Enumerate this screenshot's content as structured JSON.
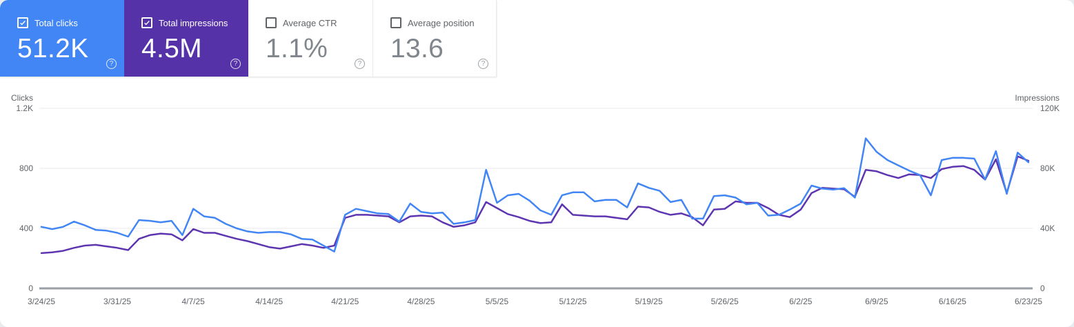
{
  "page": {
    "background": "#e9ecef",
    "panel_background": "#ffffff"
  },
  "icons": {
    "help": "?"
  },
  "cards": [
    {
      "label": "Total clicks",
      "value": "51.2K",
      "checked": true,
      "background": "#4285f4",
      "accent": "#4285f4"
    },
    {
      "label": "Total impressions",
      "value": "4.5M",
      "checked": true,
      "background": "#5632a8",
      "accent": "#5e35b1"
    },
    {
      "label": "Average CTR",
      "value": "1.1%",
      "checked": false,
      "background": "#ffffff",
      "accent": "#80868b"
    },
    {
      "label": "Average position",
      "value": "13.6",
      "checked": false,
      "background": "#ffffff",
      "accent": "#80868b"
    }
  ],
  "chart_data": {
    "type": "line",
    "title": "",
    "grid": true,
    "legend_position": "none",
    "date_range": {
      "start": "3/24/25",
      "end": "6/23/25",
      "interval": "daily"
    },
    "x_tick_labels": [
      "3/24/25",
      "3/31/25",
      "4/7/25",
      "4/14/25",
      "4/21/25",
      "4/28/25",
      "5/5/25",
      "5/12/25",
      "5/19/25",
      "5/26/25",
      "6/2/25",
      "6/9/25",
      "6/16/25",
      "6/23/25"
    ],
    "left_axis": {
      "title": "Clicks",
      "tick_labels": [
        "1.2K",
        "800",
        "400",
        "0"
      ],
      "min": 0,
      "max": 1200
    },
    "right_axis": {
      "title": "Impressions",
      "tick_labels": [
        "120K",
        "80K",
        "40K",
        "0"
      ],
      "min": 0,
      "max": 120000
    },
    "colors": {
      "gridline": "#e8eaed",
      "axis_line": "#9aa0a6",
      "tick_text": "#5f6368"
    },
    "series": [
      {
        "name": "Total clicks",
        "axis": "left",
        "color": "#4285f4",
        "values": [
          410,
          395,
          410,
          445,
          420,
          390,
          385,
          370,
          345,
          455,
          450,
          440,
          450,
          355,
          530,
          480,
          470,
          430,
          400,
          380,
          370,
          375,
          375,
          360,
          330,
          325,
          285,
          245,
          490,
          530,
          515,
          500,
          495,
          445,
          565,
          510,
          500,
          505,
          430,
          440,
          455,
          790,
          570,
          620,
          630,
          585,
          520,
          490,
          620,
          640,
          640,
          580,
          590,
          590,
          540,
          700,
          670,
          650,
          575,
          590,
          465,
          465,
          615,
          620,
          605,
          560,
          570,
          485,
          490,
          525,
          565,
          685,
          665,
          658,
          668,
          605,
          1000,
          910,
          855,
          820,
          785,
          755,
          620,
          855,
          870,
          870,
          865,
          725,
          915,
          630,
          905,
          840
        ]
      },
      {
        "name": "Total impressions",
        "axis": "right",
        "color": "#5e35b1",
        "values": [
          23500,
          24000,
          25000,
          27000,
          28500,
          29000,
          28000,
          27000,
          25500,
          33000,
          35500,
          36500,
          36000,
          32000,
          39500,
          37000,
          37000,
          35000,
          33000,
          31500,
          29500,
          27500,
          26500,
          28000,
          29500,
          28500,
          27000,
          28500,
          47000,
          49000,
          49000,
          48500,
          48000,
          44000,
          48000,
          48500,
          48000,
          44000,
          41000,
          42000,
          44000,
          57500,
          53500,
          49500,
          47500,
          45000,
          43500,
          44000,
          56000,
          49000,
          48500,
          48000,
          48000,
          47000,
          46000,
          54500,
          54000,
          51000,
          49000,
          50000,
          47500,
          42000,
          52500,
          53000,
          58000,
          57000,
          57000,
          53500,
          49000,
          47500,
          52500,
          63500,
          67000,
          66500,
          66000,
          61000,
          79000,
          78000,
          75500,
          73500,
          76000,
          75500,
          73500,
          79500,
          81000,
          81500,
          79000,
          72500,
          86000,
          63500,
          88000,
          85000
        ]
      }
    ]
  }
}
